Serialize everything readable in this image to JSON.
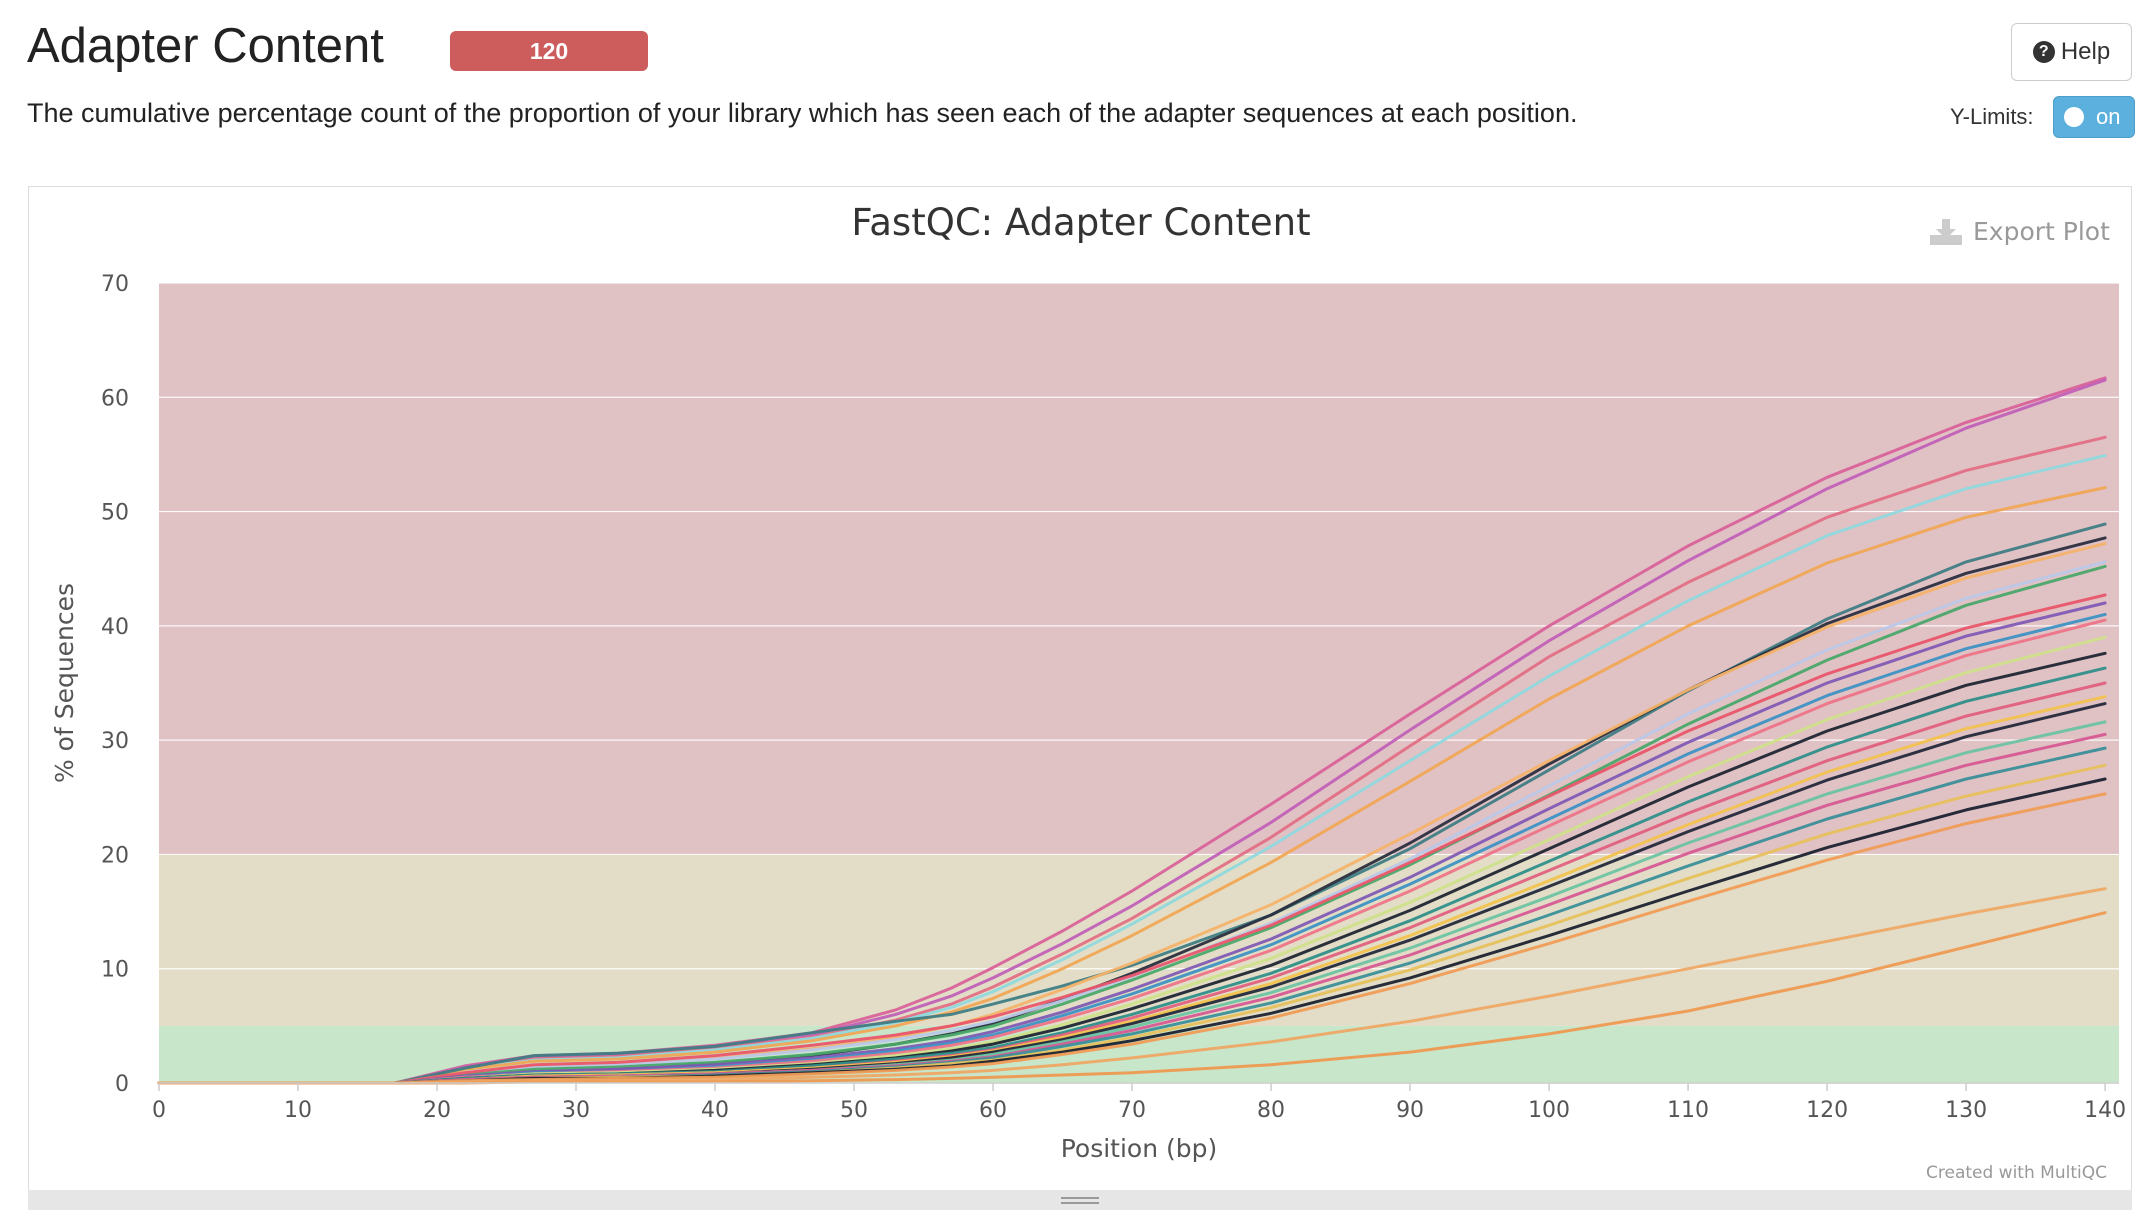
{
  "header": {
    "title": "Adapter Content",
    "badge": "120",
    "badge_color": "#cd5c5c",
    "help_label": "Help",
    "help_icon": "question-circle-icon"
  },
  "description": "The cumulative percentage count of the proportion of your library which has seen each of the adapter sequences at each position.",
  "controls": {
    "ylimits_label": "Y-Limits:",
    "toggle_label": "on",
    "toggle_state": true,
    "toggle_color": "#5bb0de"
  },
  "plot": {
    "export_label": "Export Plot",
    "export_icon": "download-icon",
    "credit": "Created with MultiQC"
  },
  "chart_data": {
    "type": "line",
    "title": "FastQC: Adapter Content",
    "xlabel": "Position (bp)",
    "ylabel": "% of Sequences",
    "xlim": [
      0,
      141
    ],
    "ylim": [
      0,
      70
    ],
    "xticks": [
      0,
      10,
      20,
      30,
      40,
      50,
      60,
      70,
      80,
      90,
      100,
      110,
      120,
      130,
      140
    ],
    "yticks": [
      0,
      10,
      20,
      30,
      40,
      50,
      60,
      70
    ],
    "legend": "none",
    "grid": true,
    "bands": [
      {
        "from": 20,
        "to": 70,
        "color": "#e0c1c4"
      },
      {
        "from": 5,
        "to": 20,
        "color": "#e3dcc7"
      },
      {
        "from": 0,
        "to": 5,
        "color": "#c8e6ca"
      }
    ],
    "x": [
      0,
      17,
      22,
      27,
      33,
      40,
      47,
      53,
      57,
      60,
      65,
      70,
      80,
      90,
      100,
      110,
      120,
      130,
      140
    ],
    "series": [
      {
        "color": "#d9629a",
        "values": [
          0,
          0,
          1.5,
          2.4,
          2.6,
          3.3,
          4.4,
          6.4,
          8.3,
          10.1,
          13.3,
          16.8,
          24.4,
          32.3,
          40.0,
          47.0,
          53.0,
          57.8,
          61.7
        ]
      },
      {
        "color": "#c160b8",
        "values": [
          0,
          0,
          1.4,
          2.3,
          2.5,
          3.2,
          4.2,
          6.0,
          7.6,
          9.2,
          12.2,
          15.5,
          22.8,
          30.9,
          38.7,
          45.7,
          52.0,
          57.3,
          61.5
        ]
      },
      {
        "color": "#e26f85",
        "values": [
          0,
          0,
          1.3,
          2.1,
          2.3,
          3.0,
          4.0,
          5.5,
          6.9,
          8.4,
          11.3,
          14.4,
          21.5,
          29.5,
          37.3,
          43.8,
          49.5,
          53.6,
          56.5
        ]
      },
      {
        "color": "#8fd9de",
        "values": [
          0,
          0,
          1.2,
          2.0,
          2.2,
          2.9,
          3.9,
          5.3,
          6.6,
          8.0,
          10.8,
          13.9,
          20.7,
          28.2,
          35.6,
          42.2,
          47.9,
          52.0,
          54.9
        ]
      },
      {
        "color": "#f0a654",
        "values": [
          0,
          0,
          1.2,
          1.9,
          2.1,
          2.7,
          3.7,
          5.0,
          6.2,
          7.4,
          10.0,
          12.9,
          19.3,
          26.4,
          33.6,
          40.0,
          45.5,
          49.5,
          52.1
        ]
      },
      {
        "color": "#3f7d84",
        "values": [
          0,
          0,
          1.3,
          2.4,
          2.6,
          3.2,
          4.4,
          5.4,
          6.0,
          6.9,
          8.5,
          10.3,
          14.7,
          20.5,
          27.4,
          34.3,
          40.6,
          45.6,
          48.9
        ]
      },
      {
        "color": "#2b2f3f",
        "values": [
          0,
          0,
          0.6,
          1.0,
          1.2,
          1.7,
          2.4,
          3.4,
          4.3,
          5.2,
          7.3,
          9.6,
          14.7,
          21.0,
          27.9,
          34.4,
          40.2,
          44.6,
          47.7
        ]
      },
      {
        "color": "#f4b36a",
        "values": [
          0,
          0,
          0.9,
          1.5,
          1.7,
          2.2,
          3.0,
          4.0,
          5.0,
          6.0,
          8.2,
          10.5,
          15.6,
          21.8,
          28.2,
          34.4,
          39.9,
          44.2,
          47.2
        ]
      },
      {
        "color": "#b9c8e8",
        "values": [
          0,
          0,
          0.8,
          1.4,
          1.6,
          2.1,
          2.9,
          3.8,
          4.6,
          5.4,
          7.2,
          9.3,
          14.0,
          19.6,
          26.0,
          32.3,
          37.9,
          42.4,
          45.6
        ]
      },
      {
        "color": "#4aa86a",
        "values": [
          0,
          0,
          0.7,
          1.2,
          1.4,
          1.8,
          2.5,
          3.4,
          4.2,
          5.0,
          6.9,
          9.0,
          13.6,
          19.1,
          25.2,
          31.4,
          37.0,
          41.8,
          45.2
        ]
      },
      {
        "color": "#e9566c",
        "values": [
          0,
          0,
          0.9,
          1.6,
          1.8,
          2.4,
          3.3,
          4.2,
          5.0,
          5.8,
          7.5,
          9.4,
          13.8,
          19.3,
          25.1,
          30.8,
          35.8,
          39.8,
          42.7
        ]
      },
      {
        "color": "#7f5bb5",
        "values": [
          0,
          0,
          0.6,
          1.0,
          1.2,
          1.6,
          2.2,
          3.0,
          3.7,
          4.5,
          6.2,
          8.2,
          12.6,
          18.0,
          24.0,
          29.8,
          35.0,
          39.1,
          42.0
        ]
      },
      {
        "color": "#3d92c4",
        "values": [
          0,
          0,
          0.5,
          0.9,
          1.0,
          1.4,
          2.0,
          2.8,
          3.5,
          4.2,
          5.9,
          7.8,
          12.1,
          17.4,
          23.1,
          28.8,
          33.9,
          38.0,
          41.0
        ]
      },
      {
        "color": "#ee7488",
        "values": [
          0,
          0,
          0.5,
          0.8,
          1.0,
          1.3,
          1.9,
          2.6,
          3.3,
          4.0,
          5.6,
          7.4,
          11.6,
          16.8,
          22.5,
          28.1,
          33.2,
          37.4,
          40.5
        ]
      },
      {
        "color": "#cfe08a",
        "values": [
          0,
          0,
          0.4,
          0.8,
          0.9,
          1.2,
          1.7,
          2.4,
          3.0,
          3.6,
          5.1,
          6.9,
          10.9,
          15.8,
          21.3,
          26.8,
          31.8,
          35.9,
          39.0
        ]
      },
      {
        "color": "#1f2633",
        "values": [
          0,
          0,
          0.4,
          0.7,
          0.8,
          1.1,
          1.6,
          2.2,
          2.8,
          3.4,
          4.8,
          6.5,
          10.3,
          15.1,
          20.5,
          25.9,
          30.8,
          34.8,
          37.6
        ]
      },
      {
        "color": "#2f8f8a",
        "values": [
          0,
          0,
          0.4,
          0.7,
          0.8,
          1.0,
          1.5,
          2.1,
          2.6,
          3.1,
          4.4,
          6.0,
          9.6,
          14.2,
          19.4,
          24.6,
          29.4,
          33.4,
          36.3
        ]
      },
      {
        "color": "#e0607f",
        "values": [
          0,
          0,
          0.3,
          0.6,
          0.7,
          0.9,
          1.3,
          1.9,
          2.4,
          2.9,
          4.2,
          5.7,
          9.2,
          13.6,
          18.6,
          23.6,
          28.2,
          32.1,
          35.0
        ]
      },
      {
        "color": "#f2c24e",
        "values": [
          0,
          0,
          0.3,
          0.6,
          0.7,
          0.9,
          1.3,
          1.8,
          2.3,
          2.8,
          4.0,
          5.4,
          8.7,
          12.9,
          17.7,
          22.6,
          27.2,
          31.0,
          33.8
        ]
      },
      {
        "color": "#23293a",
        "values": [
          0,
          0,
          0.3,
          0.5,
          0.6,
          0.8,
          1.2,
          1.7,
          2.2,
          2.7,
          3.8,
          5.2,
          8.4,
          12.5,
          17.2,
          22.0,
          26.5,
          30.3,
          33.2
        ]
      },
      {
        "color": "#6bc3a3",
        "values": [
          0,
          0,
          0.3,
          0.5,
          0.6,
          0.8,
          1.1,
          1.6,
          2.0,
          2.5,
          3.6,
          4.9,
          7.9,
          11.8,
          16.3,
          21.0,
          25.3,
          28.9,
          31.6
        ]
      },
      {
        "color": "#d65a93",
        "values": [
          0,
          0,
          0.3,
          0.5,
          0.6,
          0.8,
          1.1,
          1.5,
          1.9,
          2.3,
          3.4,
          4.6,
          7.5,
          11.2,
          15.6,
          20.1,
          24.3,
          27.8,
          30.5
        ]
      },
      {
        "color": "#3a8f99",
        "values": [
          0,
          0,
          0.2,
          0.4,
          0.5,
          0.7,
          1.0,
          1.4,
          1.8,
          2.2,
          3.2,
          4.3,
          7.0,
          10.5,
          14.7,
          19.0,
          23.1,
          26.6,
          29.3
        ]
      },
      {
        "color": "#e7c05c",
        "values": [
          0,
          0,
          0.2,
          0.4,
          0.5,
          0.6,
          0.9,
          1.3,
          1.7,
          2.0,
          2.9,
          4.0,
          6.6,
          9.9,
          13.8,
          17.9,
          21.8,
          25.1,
          27.8
        ]
      },
      {
        "color": "#1c2230",
        "values": [
          0,
          0,
          0.2,
          0.4,
          0.4,
          0.6,
          0.9,
          1.2,
          1.5,
          1.9,
          2.7,
          3.7,
          6.1,
          9.2,
          12.9,
          16.8,
          20.6,
          23.9,
          26.6
        ]
      },
      {
        "color": "#f09c55",
        "values": [
          0,
          0,
          0.2,
          0.3,
          0.4,
          0.5,
          0.8,
          1.1,
          1.4,
          1.7,
          2.5,
          3.4,
          5.7,
          8.7,
          12.2,
          15.9,
          19.5,
          22.7,
          25.3
        ]
      },
      {
        "color": "#efa865",
        "values": [
          0,
          0,
          0.1,
          0.2,
          0.2,
          0.3,
          0.5,
          0.7,
          0.9,
          1.1,
          1.6,
          2.2,
          3.6,
          5.4,
          7.6,
          10.0,
          12.4,
          14.8,
          17.0
        ]
      },
      {
        "color": "#ee9a52",
        "values": [
          0,
          0,
          0.0,
          0.1,
          0.1,
          0.1,
          0.2,
          0.3,
          0.4,
          0.5,
          0.7,
          0.9,
          1.6,
          2.7,
          4.3,
          6.3,
          8.9,
          11.9,
          14.9
        ]
      }
    ]
  }
}
